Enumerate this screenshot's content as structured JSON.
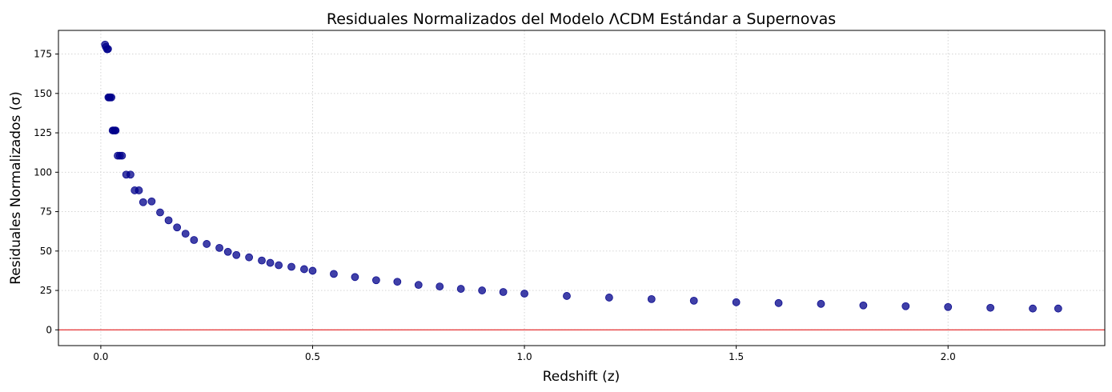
{
  "chart_data": {
    "type": "scatter",
    "title": "Residuales Normalizados del Modelo ΛCDM Estándar a Supernovas",
    "xlabel": "Redshift (z)",
    "ylabel": "Residuales Normalizados (σ)",
    "xlim": [
      -0.1,
      2.37
    ],
    "ylim": [
      -10,
      190
    ],
    "x_ticks": [
      0.0,
      0.5,
      1.0,
      1.5,
      2.0
    ],
    "x_tick_labels": [
      "0.0",
      "0.5",
      "1.0",
      "1.5",
      "2.0"
    ],
    "y_ticks": [
      0,
      25,
      50,
      75,
      100,
      125,
      150,
      175
    ],
    "y_tick_labels": [
      "0",
      "25",
      "50",
      "75",
      "100",
      "125",
      "150",
      "175"
    ],
    "grid": true,
    "marker_color": "#00008b",
    "reference_line": {
      "y": 0,
      "color": "#e31a1c"
    },
    "points": [
      [
        0.01,
        181
      ],
      [
        0.012,
        179.5
      ],
      [
        0.015,
        178
      ],
      [
        0.017,
        178.2
      ],
      [
        0.018,
        147.5
      ],
      [
        0.02,
        147.5
      ],
      [
        0.022,
        147.5
      ],
      [
        0.025,
        147.5
      ],
      [
        0.028,
        126.5
      ],
      [
        0.03,
        126.5
      ],
      [
        0.033,
        126.5
      ],
      [
        0.035,
        126.5
      ],
      [
        0.04,
        110.5
      ],
      [
        0.045,
        110.5
      ],
      [
        0.05,
        110.5
      ],
      [
        0.06,
        98.5
      ],
      [
        0.07,
        98.5
      ],
      [
        0.08,
        88.5
      ],
      [
        0.09,
        88.5
      ],
      [
        0.1,
        81
      ],
      [
        0.12,
        81.5
      ],
      [
        0.14,
        74.5
      ],
      [
        0.16,
        69.5
      ],
      [
        0.18,
        65
      ],
      [
        0.2,
        61
      ],
      [
        0.22,
        57
      ],
      [
        0.25,
        54.5
      ],
      [
        0.28,
        52
      ],
      [
        0.3,
        49.5
      ],
      [
        0.32,
        47.5
      ],
      [
        0.35,
        46
      ],
      [
        0.38,
        44
      ],
      [
        0.4,
        42.5
      ],
      [
        0.42,
        41
      ],
      [
        0.45,
        40
      ],
      [
        0.48,
        38.5
      ],
      [
        0.5,
        37.5
      ],
      [
        0.55,
        35.5
      ],
      [
        0.6,
        33.5
      ],
      [
        0.65,
        31.5
      ],
      [
        0.7,
        30.5
      ],
      [
        0.75,
        28.5
      ],
      [
        0.8,
        27.5
      ],
      [
        0.85,
        26
      ],
      [
        0.9,
        25
      ],
      [
        0.95,
        24
      ],
      [
        1.0,
        23
      ],
      [
        1.1,
        21.5
      ],
      [
        1.2,
        20.5
      ],
      [
        1.3,
        19.5
      ],
      [
        1.4,
        18.5
      ],
      [
        1.5,
        17.5
      ],
      [
        1.6,
        17
      ],
      [
        1.7,
        16.5
      ],
      [
        1.8,
        15.5
      ],
      [
        1.9,
        15
      ],
      [
        2.0,
        14.5
      ],
      [
        2.1,
        14
      ],
      [
        2.2,
        13.5
      ],
      [
        2.26,
        13.5
      ]
    ]
  }
}
